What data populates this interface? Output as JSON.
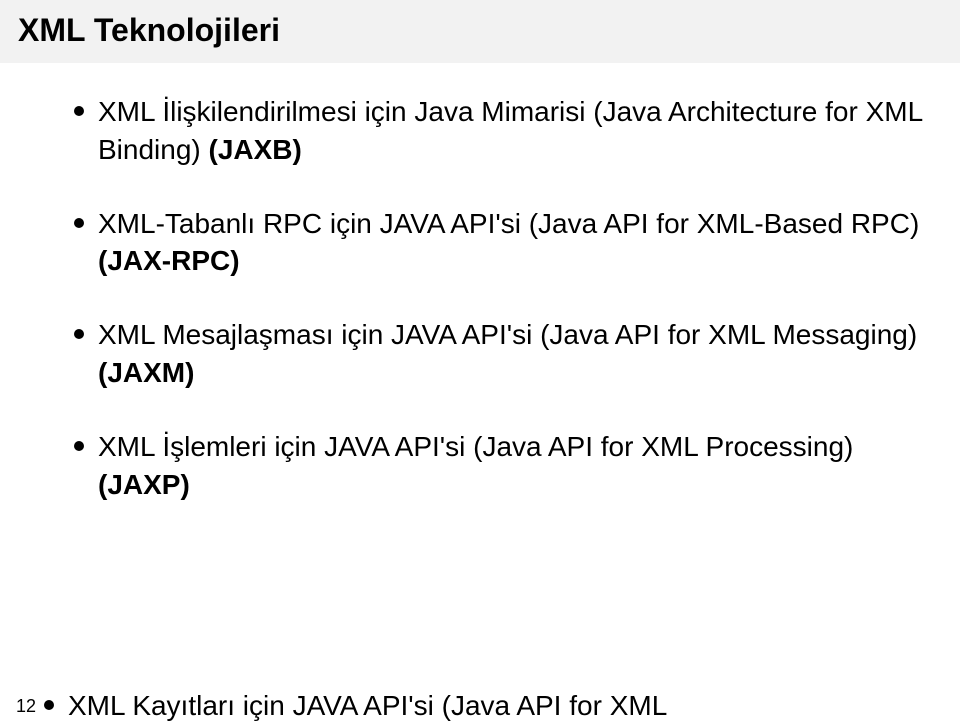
{
  "title": "XML Teknolojileri",
  "pageNumber": "12",
  "bullets": [
    {
      "pre": "XML İlişkilendirilmesi için Java Mimarisi (Java Architecture for XML Binding) ",
      "bold": "(JAXB)"
    },
    {
      "pre": "XML-Tabanlı RPC için JAVA API'si (Java API for XML-Based RPC) ",
      "bold": "(JAX-RPC)"
    },
    {
      "pre": "XML Mesajlaşması için JAVA API'si (Java API for XML Messaging) ",
      "bold": "(JAXM)"
    },
    {
      "pre": "XML İşlemleri için JAVA API'si (Java API for XML Processing) ",
      "bold": "(JAXP)"
    }
  ],
  "lastBullet": {
    "pre": "XML Kayıtları için JAVA API'si (Java API for XML",
    "bold": ""
  },
  "colors": {
    "titleBg": "#f2f2f2",
    "text": "#000000",
    "bulletDot": "#000000",
    "background": "#ffffff"
  },
  "fonts": {
    "titleSize": 32,
    "bodySize": 28
  }
}
